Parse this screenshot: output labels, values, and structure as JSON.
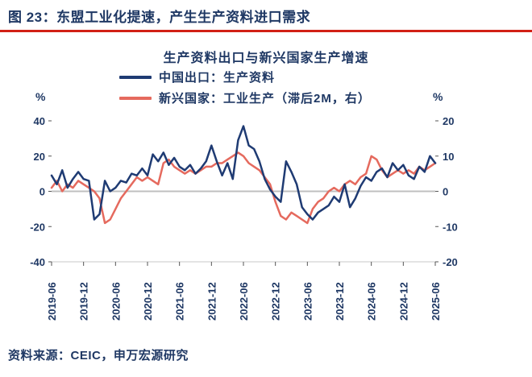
{
  "header": {
    "title": "图 23：东盟工业化提速，产生生产资料进口需求"
  },
  "chart": {
    "title": "生产资料出口与新兴国家生产增速",
    "legend": [
      {
        "label": "中国出口：生产资料",
        "color": "#1F3B73"
      },
      {
        "label": "新兴国家：工业生产（滞后2M，右）",
        "color": "#E56A5E"
      }
    ],
    "left_unit": "%",
    "right_unit": "%"
  },
  "source": {
    "text": "资料来源：CEIC，申万宏源研究"
  },
  "colors": {
    "navy": "#1F3864",
    "rule_red": "#D22015",
    "zero_line": "#BFBFBF",
    "line_blue": "#1F3B73",
    "line_red": "#E56A5E"
  },
  "chart_data": {
    "type": "line",
    "title": "生产资料出口与新兴国家生产增速",
    "x": [
      "2019-06",
      "2019-07",
      "2019-08",
      "2019-09",
      "2019-10",
      "2019-11",
      "2019-12",
      "2020-01",
      "2020-02",
      "2020-03",
      "2020-04",
      "2020-05",
      "2020-06",
      "2020-07",
      "2020-08",
      "2020-09",
      "2020-10",
      "2020-11",
      "2020-12",
      "2021-01",
      "2021-02",
      "2021-03",
      "2021-04",
      "2021-05",
      "2021-06",
      "2021-07",
      "2021-08",
      "2021-09",
      "2021-10",
      "2021-11",
      "2021-12",
      "2022-01",
      "2022-02",
      "2022-03",
      "2022-04",
      "2022-05",
      "2022-06",
      "2022-07",
      "2022-08",
      "2022-09",
      "2022-10",
      "2022-11",
      "2022-12",
      "2023-01",
      "2023-02",
      "2023-03",
      "2023-04",
      "2023-05",
      "2023-06",
      "2023-07",
      "2023-08",
      "2023-09",
      "2023-10",
      "2023-11",
      "2023-12",
      "2024-01",
      "2024-02",
      "2024-03",
      "2024-04",
      "2024-05",
      "2024-06",
      "2024-07",
      "2024-08",
      "2024-09",
      "2024-10",
      "2024-11",
      "2024-12",
      "2025-01",
      "2025-02",
      "2025-03",
      "2025-04",
      "2025-05",
      "2025-06"
    ],
    "x_tick_labels": [
      "2019-06",
      "2019-12",
      "2020-06",
      "2020-12",
      "2021-06",
      "2021-12",
      "2022-06",
      "2022-12",
      "2023-06",
      "2023-12",
      "2024-06",
      "2024-12",
      "2025-06"
    ],
    "x_tick_every": 6,
    "series": [
      {
        "name": "中国出口：生产资料",
        "axis": "left",
        "color": "#1F3B73",
        "values": [
          9,
          4,
          12,
          2,
          7,
          11,
          7,
          6,
          -16,
          -13,
          6,
          0,
          2,
          6,
          5,
          10,
          9,
          13,
          9,
          21,
          17,
          22,
          15,
          19,
          14,
          12,
          15,
          10,
          13,
          17,
          26,
          17,
          9,
          16,
          7,
          29,
          37,
          26,
          24,
          17,
          7,
          1,
          -3,
          -6,
          17,
          11,
          4,
          -9,
          -13,
          -16,
          -12,
          -10,
          -8,
          -3,
          -6,
          4,
          -9,
          -4,
          3,
          8,
          6,
          11,
          13,
          8,
          16,
          12,
          15,
          9,
          7,
          14,
          11,
          20,
          16
        ]
      },
      {
        "name": "新兴国家：工业生产（滞后2M，右）",
        "axis": "right",
        "color": "#E56A5E",
        "values": [
          1,
          3,
          0,
          2,
          1,
          3,
          2,
          1,
          0,
          -2,
          -9,
          -8,
          -5,
          -2,
          0,
          2,
          4,
          3,
          4,
          3,
          2,
          8,
          9,
          7,
          6,
          5,
          6,
          5,
          6,
          7,
          7,
          8,
          8,
          9,
          10,
          11,
          10,
          8,
          7,
          6,
          4,
          2,
          -3,
          -7,
          -8,
          -6,
          -7,
          -8,
          -9,
          -5,
          -3,
          -2,
          0,
          1,
          0,
          2,
          3,
          2,
          4,
          5,
          10,
          9,
          6,
          4,
          5,
          6,
          5,
          6,
          5,
          7,
          6,
          7,
          8
        ]
      }
    ],
    "left_axis": {
      "label": "%",
      "min": -40,
      "max": 40,
      "ticks": [
        40,
        20,
        0,
        -20,
        -40
      ]
    },
    "right_axis": {
      "label": "%",
      "min": -20,
      "max": 20,
      "ticks": [
        20,
        10,
        0,
        -10,
        -20
      ]
    },
    "grid": "zero-line-only",
    "legend_position": "top-left"
  }
}
